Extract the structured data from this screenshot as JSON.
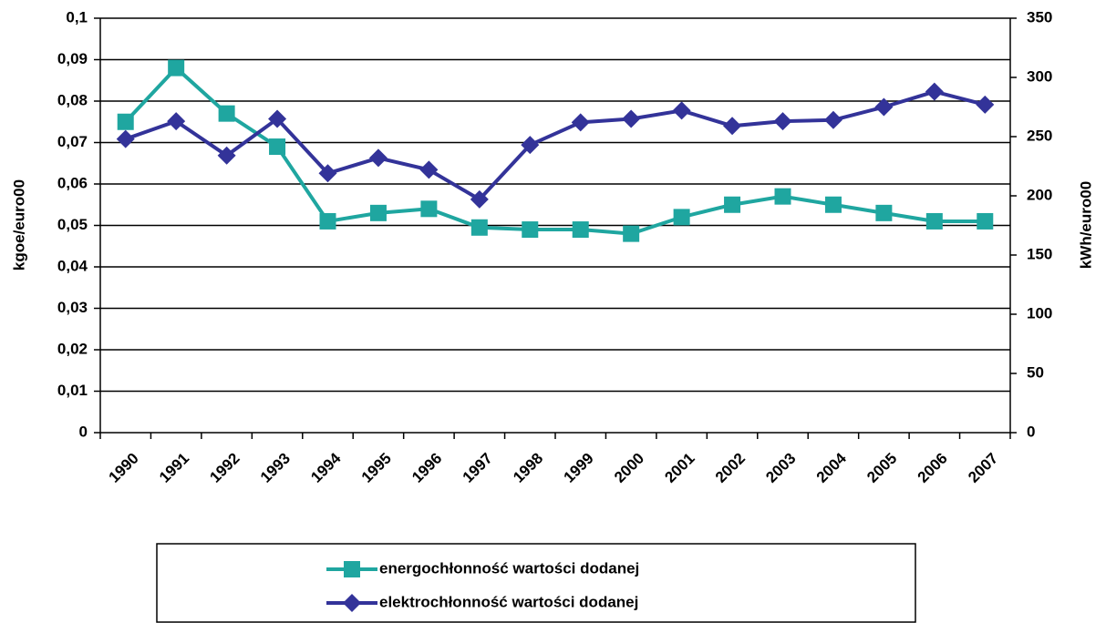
{
  "chart_data": {
    "type": "line",
    "categories": [
      "1990",
      "1991",
      "1992",
      "1993",
      "1994",
      "1995",
      "1996",
      "1997",
      "1998",
      "1999",
      "2000",
      "2001",
      "2002",
      "2003",
      "2004",
      "2005",
      "2006",
      "2007"
    ],
    "y_label": "kgoe/euro00",
    "y2_label": "kWh/euro00",
    "ylim": [
      0,
      0.1
    ],
    "yticks": [
      0,
      {
        "value": 0.01,
        "label": "0,01"
      },
      {
        "value": 0.02,
        "label": "0,02"
      },
      {
        "value": 0.03,
        "label": "0,03"
      },
      {
        "value": 0.04,
        "label": "0,04"
      },
      {
        "value": 0.05,
        "label": "0,05"
      },
      {
        "value": 0.06,
        "label": "0,06"
      },
      {
        "value": 0.07,
        "label": "0,07"
      },
      {
        "value": 0.08,
        "label": "0,08"
      },
      {
        "value": 0.09,
        "label": "0,09"
      },
      {
        "value": 0.1,
        "label": "0,1"
      }
    ],
    "y2lim": [
      0,
      350
    ],
    "y2ticks": [
      0,
      50,
      100,
      150,
      200,
      250,
      300,
      350
    ],
    "grid": true,
    "legend": "bottom",
    "series": [
      {
        "name": "energochłonność wartości dodanej",
        "color": "#1fa6a0",
        "marker": "square",
        "values": [
          0.075,
          0.088,
          0.077,
          0.069,
          0.051,
          0.053,
          0.054,
          0.0495,
          0.049,
          0.049,
          0.048,
          0.052,
          0.055,
          0.057,
          0.055,
          0.053,
          0.051,
          0.051
        ]
      },
      {
        "name": "elektrochłonność wartości dodanej",
        "color": "#333399",
        "marker": "diamond",
        "axis": "y2",
        "values": [
          248,
          263,
          234,
          265,
          219,
          232,
          222,
          197,
          243,
          262,
          265,
          272,
          259,
          263,
          264,
          275,
          288,
          277
        ]
      }
    ]
  }
}
